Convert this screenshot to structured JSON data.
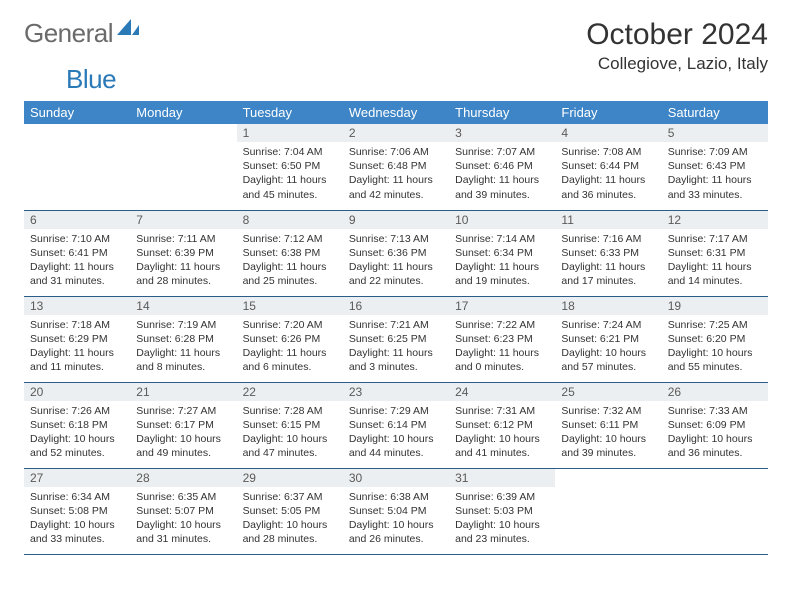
{
  "brand": {
    "part1": "General",
    "part2": "Blue"
  },
  "title": "October 2024",
  "location": "Collegiove, Lazio, Italy",
  "colors": {
    "header_bg": "#3d85c6",
    "header_text": "#ffffff",
    "daynum_bg": "#eceff1",
    "row_border": "#2a5d8a",
    "logo_gray": "#6a6a6a",
    "logo_blue": "#2a7ab8"
  },
  "weekdays": [
    "Sunday",
    "Monday",
    "Tuesday",
    "Wednesday",
    "Thursday",
    "Friday",
    "Saturday"
  ],
  "weeks": [
    [
      null,
      null,
      {
        "n": "1",
        "sr": "7:04 AM",
        "ss": "6:50 PM",
        "dl": "11 hours and 45 minutes."
      },
      {
        "n": "2",
        "sr": "7:06 AM",
        "ss": "6:48 PM",
        "dl": "11 hours and 42 minutes."
      },
      {
        "n": "3",
        "sr": "7:07 AM",
        "ss": "6:46 PM",
        "dl": "11 hours and 39 minutes."
      },
      {
        "n": "4",
        "sr": "7:08 AM",
        "ss": "6:44 PM",
        "dl": "11 hours and 36 minutes."
      },
      {
        "n": "5",
        "sr": "7:09 AM",
        "ss": "6:43 PM",
        "dl": "11 hours and 33 minutes."
      }
    ],
    [
      {
        "n": "6",
        "sr": "7:10 AM",
        "ss": "6:41 PM",
        "dl": "11 hours and 31 minutes."
      },
      {
        "n": "7",
        "sr": "7:11 AM",
        "ss": "6:39 PM",
        "dl": "11 hours and 28 minutes."
      },
      {
        "n": "8",
        "sr": "7:12 AM",
        "ss": "6:38 PM",
        "dl": "11 hours and 25 minutes."
      },
      {
        "n": "9",
        "sr": "7:13 AM",
        "ss": "6:36 PM",
        "dl": "11 hours and 22 minutes."
      },
      {
        "n": "10",
        "sr": "7:14 AM",
        "ss": "6:34 PM",
        "dl": "11 hours and 19 minutes."
      },
      {
        "n": "11",
        "sr": "7:16 AM",
        "ss": "6:33 PM",
        "dl": "11 hours and 17 minutes."
      },
      {
        "n": "12",
        "sr": "7:17 AM",
        "ss": "6:31 PM",
        "dl": "11 hours and 14 minutes."
      }
    ],
    [
      {
        "n": "13",
        "sr": "7:18 AM",
        "ss": "6:29 PM",
        "dl": "11 hours and 11 minutes."
      },
      {
        "n": "14",
        "sr": "7:19 AM",
        "ss": "6:28 PM",
        "dl": "11 hours and 8 minutes."
      },
      {
        "n": "15",
        "sr": "7:20 AM",
        "ss": "6:26 PM",
        "dl": "11 hours and 6 minutes."
      },
      {
        "n": "16",
        "sr": "7:21 AM",
        "ss": "6:25 PM",
        "dl": "11 hours and 3 minutes."
      },
      {
        "n": "17",
        "sr": "7:22 AM",
        "ss": "6:23 PM",
        "dl": "11 hours and 0 minutes."
      },
      {
        "n": "18",
        "sr": "7:24 AM",
        "ss": "6:21 PM",
        "dl": "10 hours and 57 minutes."
      },
      {
        "n": "19",
        "sr": "7:25 AM",
        "ss": "6:20 PM",
        "dl": "10 hours and 55 minutes."
      }
    ],
    [
      {
        "n": "20",
        "sr": "7:26 AM",
        "ss": "6:18 PM",
        "dl": "10 hours and 52 minutes."
      },
      {
        "n": "21",
        "sr": "7:27 AM",
        "ss": "6:17 PM",
        "dl": "10 hours and 49 minutes."
      },
      {
        "n": "22",
        "sr": "7:28 AM",
        "ss": "6:15 PM",
        "dl": "10 hours and 47 minutes."
      },
      {
        "n": "23",
        "sr": "7:29 AM",
        "ss": "6:14 PM",
        "dl": "10 hours and 44 minutes."
      },
      {
        "n": "24",
        "sr": "7:31 AM",
        "ss": "6:12 PM",
        "dl": "10 hours and 41 minutes."
      },
      {
        "n": "25",
        "sr": "7:32 AM",
        "ss": "6:11 PM",
        "dl": "10 hours and 39 minutes."
      },
      {
        "n": "26",
        "sr": "7:33 AM",
        "ss": "6:09 PM",
        "dl": "10 hours and 36 minutes."
      }
    ],
    [
      {
        "n": "27",
        "sr": "6:34 AM",
        "ss": "5:08 PM",
        "dl": "10 hours and 33 minutes."
      },
      {
        "n": "28",
        "sr": "6:35 AM",
        "ss": "5:07 PM",
        "dl": "10 hours and 31 minutes."
      },
      {
        "n": "29",
        "sr": "6:37 AM",
        "ss": "5:05 PM",
        "dl": "10 hours and 28 minutes."
      },
      {
        "n": "30",
        "sr": "6:38 AM",
        "ss": "5:04 PM",
        "dl": "10 hours and 26 minutes."
      },
      {
        "n": "31",
        "sr": "6:39 AM",
        "ss": "5:03 PM",
        "dl": "10 hours and 23 minutes."
      },
      null,
      null
    ]
  ],
  "labels": {
    "sunrise": "Sunrise:",
    "sunset": "Sunset:",
    "daylight": "Daylight:"
  }
}
